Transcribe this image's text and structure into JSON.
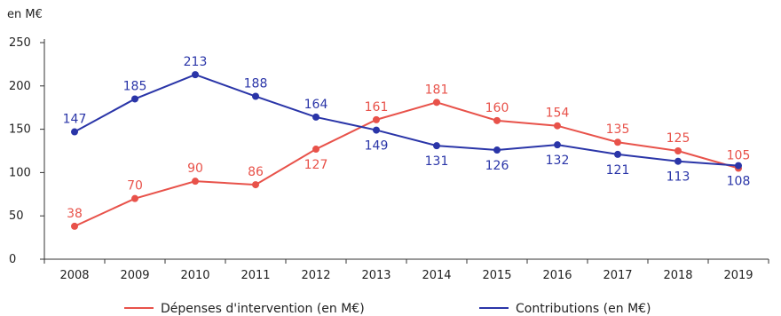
{
  "chart_data": {
    "type": "line",
    "unit_label": "en M€",
    "categories": [
      "2008",
      "2009",
      "2010",
      "2011",
      "2012",
      "2013",
      "2014",
      "2015",
      "2016",
      "2017",
      "2018",
      "2019"
    ],
    "ylim": [
      0,
      250
    ],
    "yticks": [
      0,
      50,
      100,
      150,
      200,
      250
    ],
    "grid": false,
    "legend_position": "bottom",
    "series": [
      {
        "name": "Dépenses d'intervention (en M€)",
        "color": "#e8524a",
        "values": [
          38,
          70,
          90,
          86,
          127,
          161,
          181,
          160,
          154,
          135,
          125,
          105
        ],
        "label_positions": [
          "above",
          "above",
          "above",
          "above",
          "below",
          "above",
          "above",
          "above",
          "above",
          "above",
          "above",
          "above"
        ]
      },
      {
        "name": "Contributions (en M€)",
        "color": "#2a35a8",
        "values": [
          147,
          185,
          213,
          188,
          164,
          149,
          131,
          126,
          132,
          121,
          113,
          108
        ],
        "label_positions": [
          "above",
          "above",
          "above",
          "above",
          "above",
          "below",
          "below",
          "below",
          "below",
          "below",
          "below",
          "below"
        ]
      }
    ]
  }
}
